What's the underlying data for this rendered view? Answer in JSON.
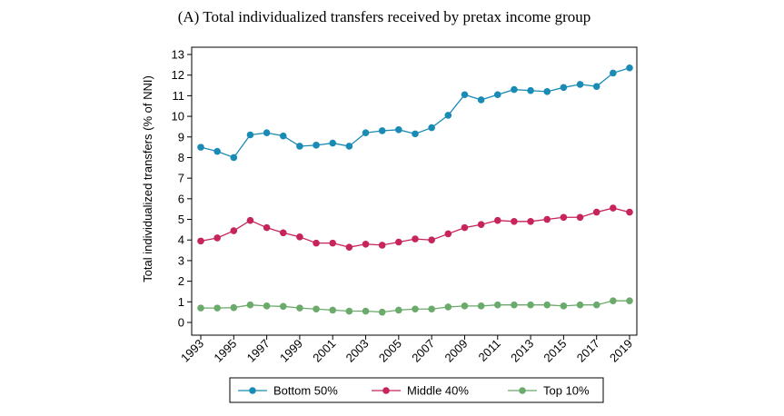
{
  "chart_data": {
    "type": "line",
    "title": "(A) Total individualized transfers received by pretax income group",
    "xlabel": "",
    "ylabel": "Total individualized transfers (% of NNI)",
    "x": [
      1993,
      1994,
      1995,
      1996,
      1997,
      1998,
      1999,
      2000,
      2001,
      2002,
      2003,
      2004,
      2005,
      2006,
      2007,
      2008,
      2009,
      2010,
      2011,
      2012,
      2013,
      2014,
      2015,
      2016,
      2017,
      2018,
      2019
    ],
    "xticks": [
      1993,
      1995,
      1997,
      1999,
      2001,
      2003,
      2005,
      2007,
      2009,
      2011,
      2013,
      2015,
      2017,
      2019
    ],
    "xlim": [
      1993,
      2019
    ],
    "ylim": [
      0,
      13
    ],
    "yticks": [
      0,
      1,
      2,
      3,
      4,
      5,
      6,
      7,
      8,
      9,
      10,
      11,
      12,
      13
    ],
    "grid": false,
    "legend_position": "bottom",
    "series": [
      {
        "name": "Bottom 50%",
        "color": "#1a8bb5",
        "values": [
          8.5,
          8.3,
          8.0,
          9.1,
          9.2,
          9.05,
          8.55,
          8.6,
          8.7,
          8.55,
          9.2,
          9.3,
          9.35,
          9.15,
          9.45,
          10.05,
          11.05,
          10.8,
          11.05,
          11.3,
          11.25,
          11.2,
          11.4,
          11.55,
          11.45,
          12.1,
          12.35
        ]
      },
      {
        "name": "Middle 40%",
        "color": "#c6245a",
        "values": [
          3.95,
          4.1,
          4.45,
          4.95,
          4.6,
          4.35,
          4.15,
          3.85,
          3.85,
          3.65,
          3.8,
          3.75,
          3.9,
          4.05,
          4.0,
          4.3,
          4.6,
          4.75,
          4.95,
          4.9,
          4.9,
          5.0,
          5.1,
          5.1,
          5.35,
          5.55,
          5.35
        ]
      },
      {
        "name": "Top 10%",
        "color": "#6aaa6a",
        "values": [
          0.7,
          0.7,
          0.72,
          0.85,
          0.8,
          0.78,
          0.7,
          0.65,
          0.6,
          0.55,
          0.55,
          0.5,
          0.6,
          0.65,
          0.65,
          0.75,
          0.8,
          0.8,
          0.85,
          0.85,
          0.85,
          0.85,
          0.8,
          0.85,
          0.85,
          1.05,
          1.05
        ]
      }
    ]
  }
}
